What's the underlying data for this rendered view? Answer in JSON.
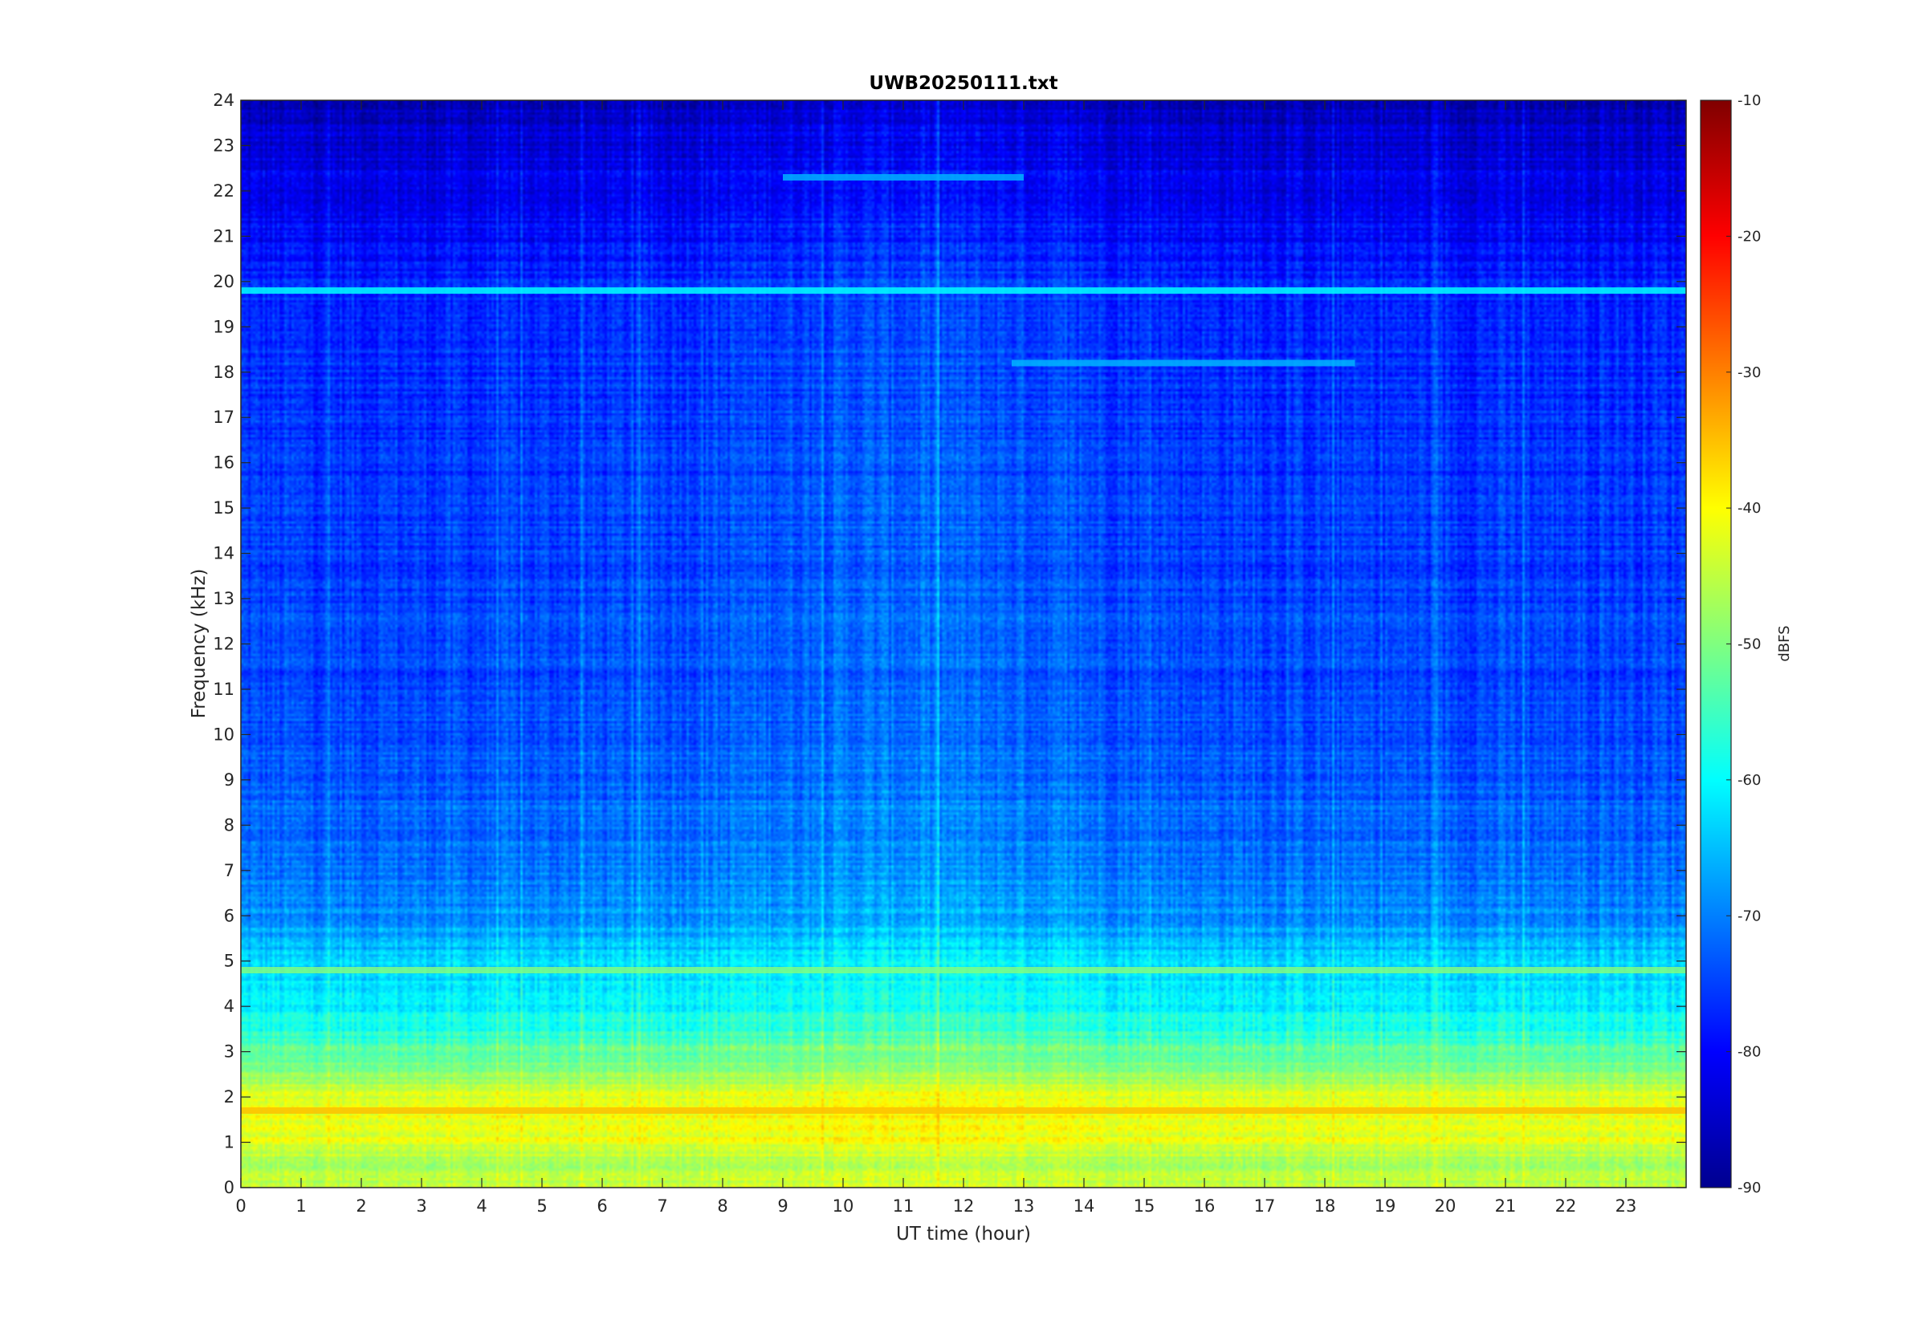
{
  "chart_data": {
    "type": "heatmap",
    "title": "UWB20250111.txt",
    "xlabel": "UT time (hour)",
    "ylabel": "Frequency (kHz)",
    "xlim": [
      0,
      24
    ],
    "ylim": [
      0,
      24
    ],
    "x_ticks": [
      "0",
      "1",
      "2",
      "3",
      "4",
      "5",
      "6",
      "7",
      "8",
      "9",
      "10",
      "11",
      "12",
      "13",
      "14",
      "15",
      "16",
      "17",
      "18",
      "19",
      "20",
      "21",
      "22",
      "23"
    ],
    "y_ticks": [
      "0",
      "1",
      "2",
      "3",
      "4",
      "5",
      "6",
      "7",
      "8",
      "9",
      "10",
      "11",
      "12",
      "13",
      "14",
      "15",
      "16",
      "17",
      "18",
      "19",
      "20",
      "21",
      "22",
      "23",
      "24"
    ],
    "colorbar": {
      "label": "dBFS",
      "range": [
        -90,
        -10
      ],
      "ticks": [
        "-10",
        "-20",
        "-30",
        "-40",
        "-50",
        "-60",
        "-70",
        "-80",
        "-90"
      ],
      "colormap": "jet"
    },
    "frequency_profile_dbfs": [
      {
        "f": 0.0,
        "v": -45
      },
      {
        "f": 0.5,
        "v": -47
      },
      {
        "f": 1.0,
        "v": -42
      },
      {
        "f": 1.5,
        "v": -41
      },
      {
        "f": 2.0,
        "v": -43
      },
      {
        "f": 2.5,
        "v": -49
      },
      {
        "f": 3.0,
        "v": -53
      },
      {
        "f": 3.5,
        "v": -58
      },
      {
        "f": 4.0,
        "v": -61
      },
      {
        "f": 5.0,
        "v": -64
      },
      {
        "f": 6.0,
        "v": -69
      },
      {
        "f": 7.0,
        "v": -71
      },
      {
        "f": 8.0,
        "v": -72
      },
      {
        "f": 10.0,
        "v": -74
      },
      {
        "f": 13.0,
        "v": -75
      },
      {
        "f": 16.0,
        "v": -76
      },
      {
        "f": 19.5,
        "v": -77
      },
      {
        "f": 21.0,
        "v": -80
      },
      {
        "f": 22.5,
        "v": -82
      },
      {
        "f": 24.0,
        "v": -85
      }
    ],
    "narrowband_lines": [
      {
        "f_khz": 19.8,
        "level_dbfs": -60,
        "t_start": 0,
        "t_end": 24
      },
      {
        "f_khz": 18.2,
        "level_dbfs": -66,
        "t_start": 12.8,
        "t_end": 18.5
      },
      {
        "f_khz": 22.3,
        "level_dbfs": -66,
        "t_start": 9,
        "t_end": 13
      },
      {
        "f_khz": 4.8,
        "level_dbfs": -50,
        "t_start": 0,
        "t_end": 24
      },
      {
        "f_khz": 1.7,
        "level_dbfs": -35,
        "t_start": 0,
        "t_end": 24
      }
    ]
  }
}
